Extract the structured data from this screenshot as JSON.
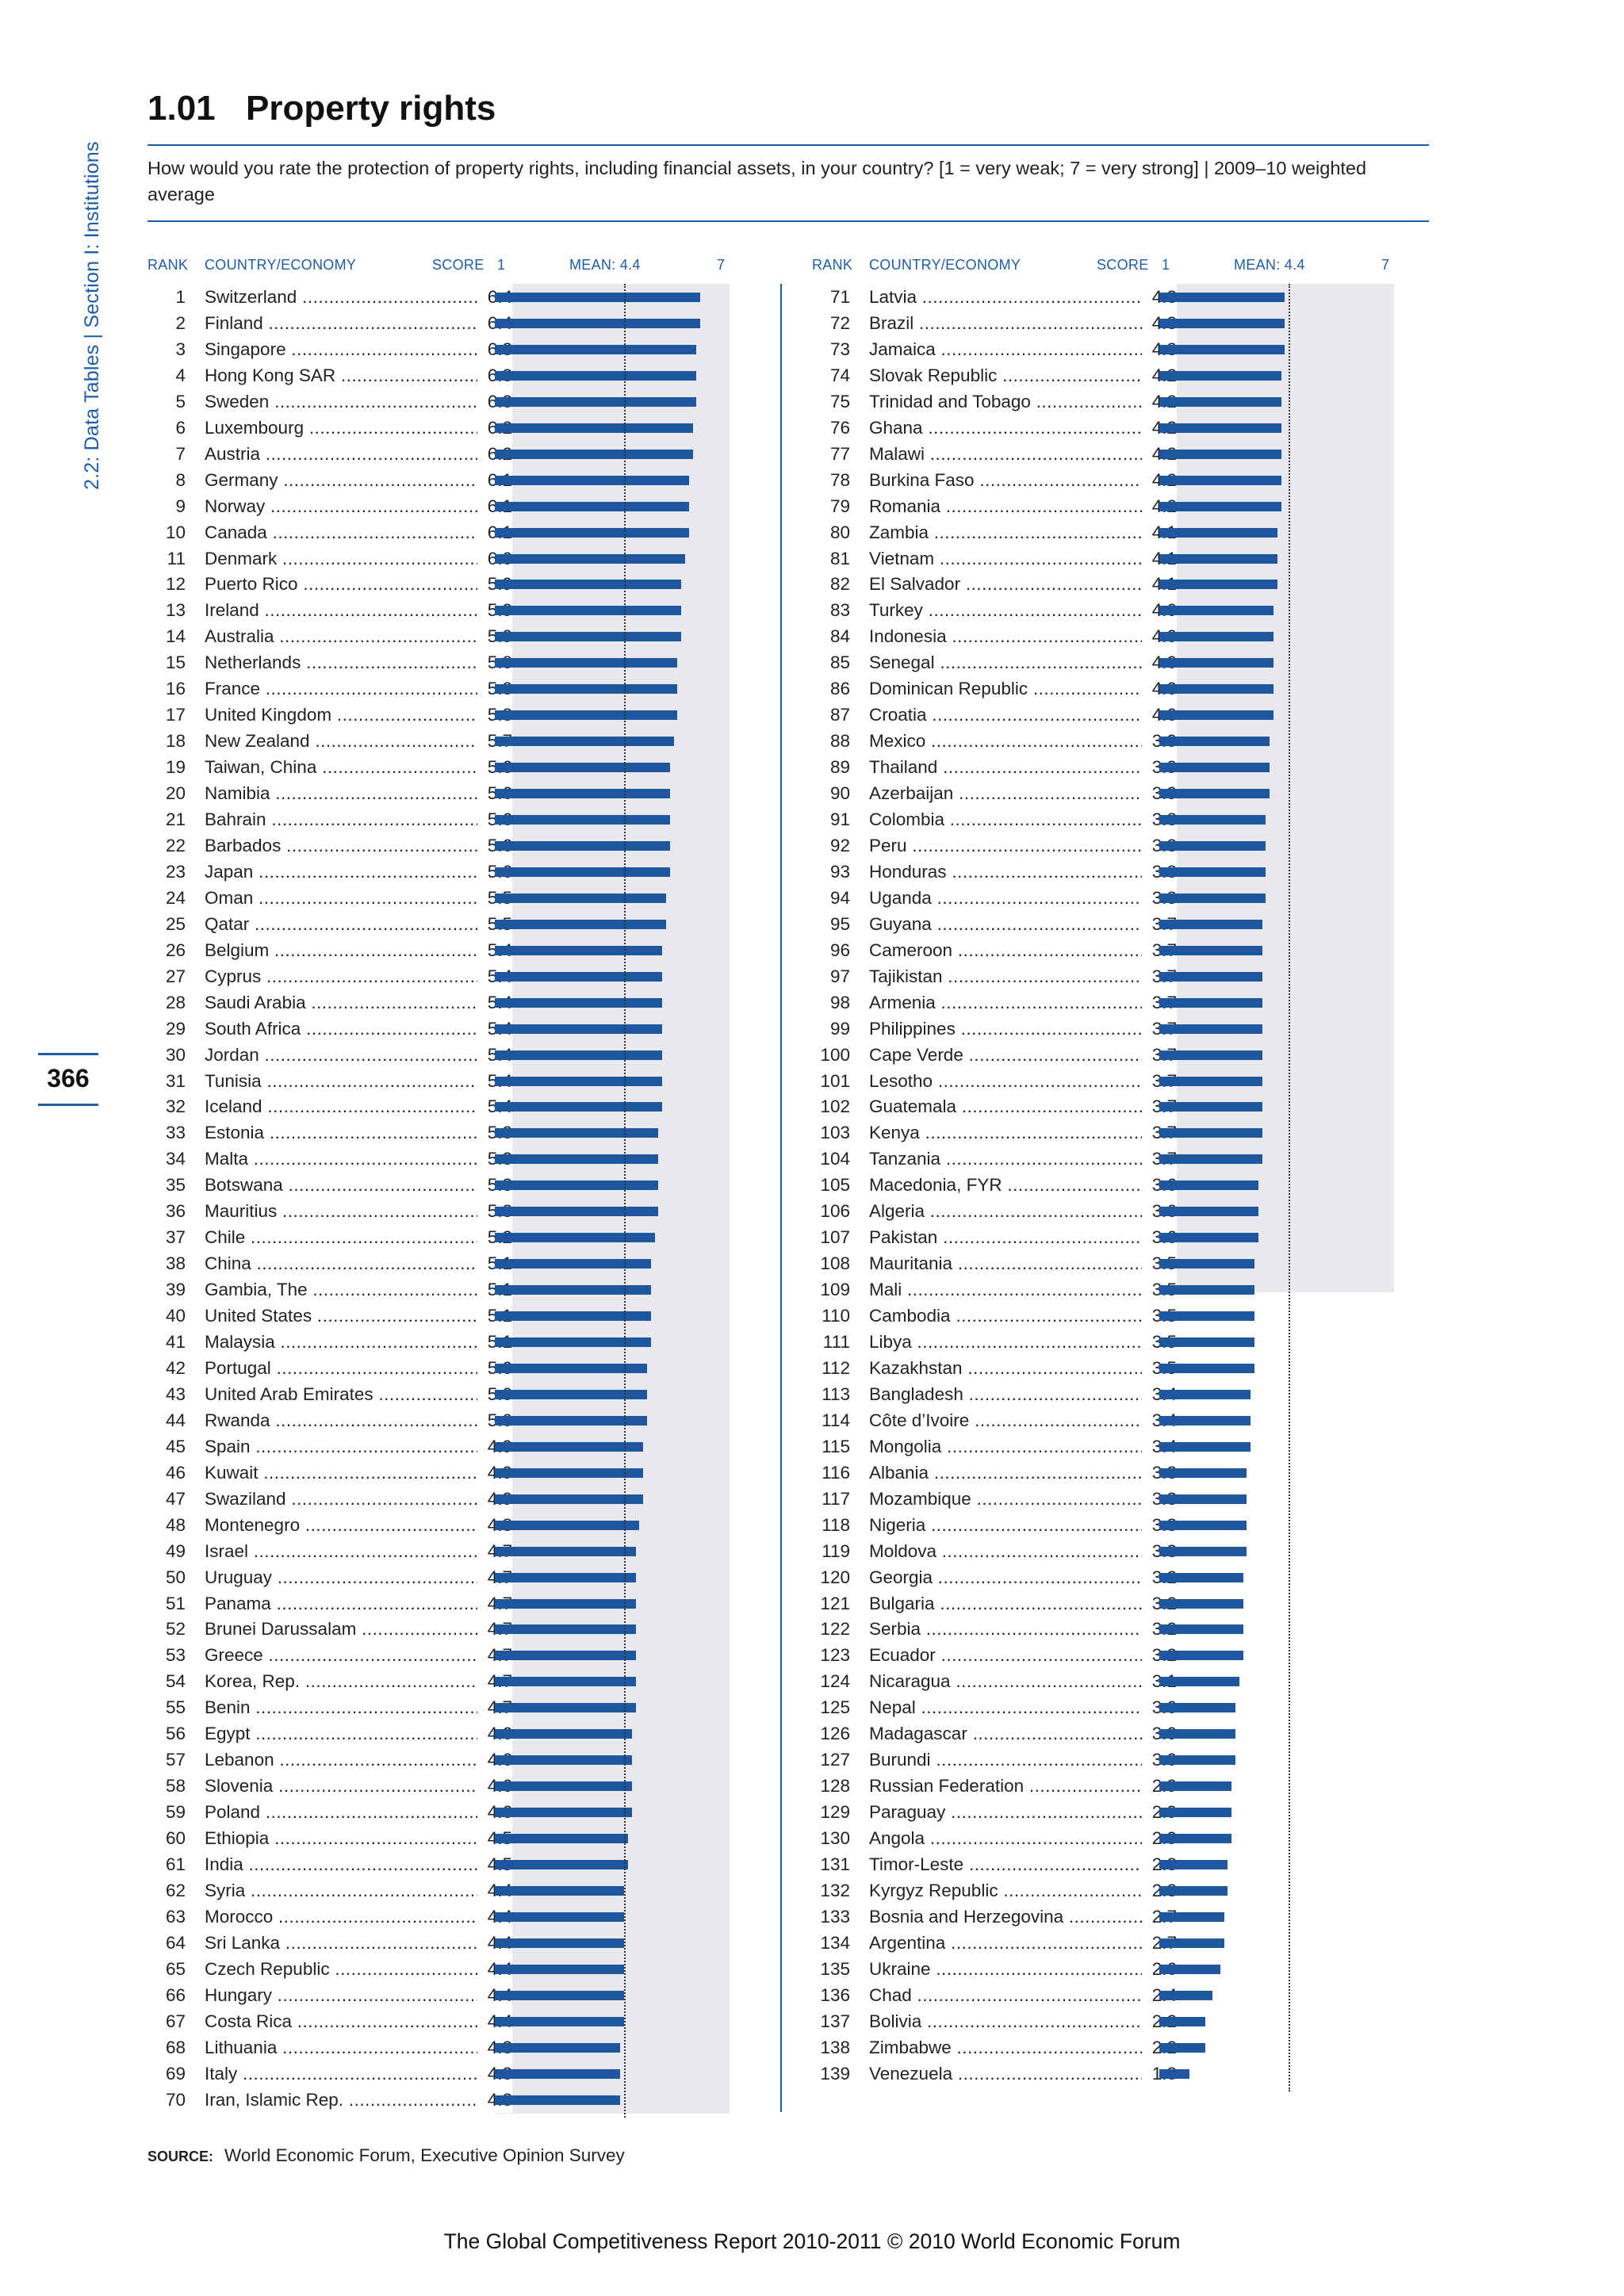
{
  "sidebar": {
    "section_text": "2.2: Data Tables  |  Section I: Institutions",
    "page_number": "366"
  },
  "header": {
    "number": "1.01",
    "title": "Property rights",
    "question": "How would you rate the protection of property rights, including financial assets, in your country? [1 = very weak; 7 = very strong]  |  2009–10 weighted average"
  },
  "columns": {
    "rank": "RANK",
    "country": "COUNTRY/ECONOMY",
    "score": "SCORE",
    "min": "1",
    "mean": "MEAN: 4.4",
    "max": "7"
  },
  "source": {
    "label": "SOURCE:",
    "text": "World Economic Forum, Executive Opinion Survey"
  },
  "footer": "The Global Competitiveness Report 2010-2011 © 2010 World Economic Forum",
  "colors": {
    "accent": "#1d5ca6",
    "bar": "#1e56a0",
    "panel": "#e9e8ec"
  },
  "chart_data": {
    "type": "bar",
    "orientation": "horizontal",
    "xlim": [
      1,
      7
    ],
    "mean": 4.4,
    "ranks": [
      1,
      2,
      3,
      4,
      5,
      6,
      7,
      8,
      9,
      10,
      11,
      12,
      13,
      14,
      15,
      16,
      17,
      18,
      19,
      20,
      21,
      22,
      23,
      24,
      25,
      26,
      27,
      28,
      29,
      30,
      31,
      32,
      33,
      34,
      35,
      36,
      37,
      38,
      39,
      40,
      41,
      42,
      43,
      44,
      45,
      46,
      47,
      48,
      49,
      50,
      51,
      52,
      53,
      54,
      55,
      56,
      57,
      58,
      59,
      60,
      61,
      62,
      63,
      64,
      65,
      66,
      67,
      68,
      69,
      70,
      71,
      72,
      73,
      74,
      75,
      76,
      77,
      78,
      79,
      80,
      81,
      82,
      83,
      84,
      85,
      86,
      87,
      88,
      89,
      90,
      91,
      92,
      93,
      94,
      95,
      96,
      97,
      98,
      99,
      100,
      101,
      102,
      103,
      104,
      105,
      106,
      107,
      108,
      109,
      110,
      111,
      112,
      113,
      114,
      115,
      116,
      117,
      118,
      119,
      120,
      121,
      122,
      123,
      124,
      125,
      126,
      127,
      128,
      129,
      130,
      131,
      132,
      133,
      134,
      135,
      136,
      137,
      138,
      139
    ],
    "categories": [
      "Switzerland",
      "Finland",
      "Singapore",
      "Hong Kong SAR",
      "Sweden",
      "Luxembourg",
      "Austria",
      "Germany",
      "Norway",
      "Canada",
      "Denmark",
      "Puerto Rico",
      "Ireland",
      "Australia",
      "Netherlands",
      "France",
      "United Kingdom",
      "New Zealand",
      "Taiwan, China",
      "Namibia",
      "Bahrain",
      "Barbados",
      "Japan",
      "Oman",
      "Qatar",
      "Belgium",
      "Cyprus",
      "Saudi Arabia",
      "South Africa",
      "Jordan",
      "Tunisia",
      "Iceland",
      "Estonia",
      "Malta",
      "Botswana",
      "Mauritius",
      "Chile",
      "China",
      "Gambia, The",
      "United States",
      "Malaysia",
      "Portugal",
      "United Arab Emirates",
      "Rwanda",
      "Spain",
      "Kuwait",
      "Swaziland",
      "Montenegro",
      "Israel",
      "Uruguay",
      "Panama",
      "Brunei Darussalam",
      "Greece",
      "Korea, Rep.",
      "Benin",
      "Egypt",
      "Lebanon",
      "Slovenia",
      "Poland",
      "Ethiopia",
      "India",
      "Syria",
      "Morocco",
      "Sri Lanka",
      "Czech Republic",
      "Hungary",
      "Costa Rica",
      "Lithuania",
      "Italy",
      "Iran, Islamic Rep.",
      "Latvia",
      "Brazil",
      "Jamaica",
      "Slovak Republic",
      "Trinidad and Tobago",
      "Ghana",
      "Malawi",
      "Burkina Faso",
      "Romania",
      "Zambia",
      "Vietnam",
      "El Salvador",
      "Turkey",
      "Indonesia",
      "Senegal",
      "Dominican Republic",
      "Croatia",
      "Mexico",
      "Thailand",
      "Azerbaijan",
      "Colombia",
      "Peru",
      "Honduras",
      "Uganda",
      "Guyana",
      "Cameroon",
      "Tajikistan",
      "Armenia",
      "Philippines",
      "Cape Verde",
      "Lesotho",
      "Guatemala",
      "Kenya",
      "Tanzania",
      "Macedonia, FYR",
      "Algeria",
      "Pakistan",
      "Mauritania",
      "Mali",
      "Cambodia",
      "Libya",
      "Kazakhstan",
      "Bangladesh",
      "Côte d’Ivoire",
      "Mongolia",
      "Albania",
      "Mozambique",
      "Nigeria",
      "Moldova",
      "Georgia",
      "Bulgaria",
      "Serbia",
      "Ecuador",
      "Nicaragua",
      "Nepal",
      "Madagascar",
      "Burundi",
      "Russian Federation",
      "Paraguay",
      "Angola",
      "Timor-Leste",
      "Kyrgyz Republic",
      "Bosnia and Herzegovina",
      "Argentina",
      "Ukraine",
      "Chad",
      "Bolivia",
      "Zimbabwe",
      "Venezuela"
    ],
    "values": [
      "6.4",
      "6.4",
      "6.3",
      "6.3",
      "6.3",
      "6.2",
      "6.2",
      "6.1",
      "6.1",
      "6.1",
      "6.0",
      "5.9",
      "5.9",
      "5.9",
      "5.8",
      "5.8",
      "5.8",
      "5.7",
      "5.6",
      "5.6",
      "5.6",
      "5.6",
      "5.6",
      "5.5",
      "5.5",
      "5.4",
      "5.4",
      "5.4",
      "5.4",
      "5.4",
      "5.4",
      "5.4",
      "5.3",
      "5.3",
      "5.3",
      "5.3",
      "5.2",
      "5.1",
      "5.1",
      "5.1",
      "5.1",
      "5.0",
      "5.0",
      "5.0",
      "4.9",
      "4.9",
      "4.9",
      "4.8",
      "4.7",
      "4.7",
      "4.7",
      "4.7",
      "4.7",
      "4.7",
      "4.7",
      "4.6",
      "4.6",
      "4.6",
      "4.6",
      "4.5",
      "4.5",
      "4.4",
      "4.4",
      "4.4",
      "4.4",
      "4.4",
      "4.4",
      "4.3",
      "4.3",
      "4.3",
      "4.3",
      "4.3",
      "4.3",
      "4.2",
      "4.2",
      "4.2",
      "4.2",
      "4.2",
      "4.2",
      "4.1",
      "4.1",
      "4.1",
      "4.0",
      "4.0",
      "4.0",
      "4.0",
      "4.0",
      "3.9",
      "3.9",
      "3.9",
      "3.8",
      "3.8",
      "3.8",
      "3.8",
      "3.7",
      "3.7",
      "3.7",
      "3.7",
      "3.7",
      "3.7",
      "3.7",
      "3.7",
      "3.7",
      "3.7",
      "3.6",
      "3.6",
      "3.6",
      "3.5",
      "3.5",
      "3.5",
      "3.5",
      "3.5",
      "3.4",
      "3.4",
      "3.4",
      "3.3",
      "3.3",
      "3.3",
      "3.3",
      "3.2",
      "3.2",
      "3.2",
      "3.2",
      "3.1",
      "3.0",
      "3.0",
      "3.0",
      "2.9",
      "2.9",
      "2.9",
      "2.8",
      "2.8",
      "2.7",
      "2.7",
      "2.6",
      "2.4",
      "2.2",
      "2.2",
      "1.8"
    ]
  }
}
